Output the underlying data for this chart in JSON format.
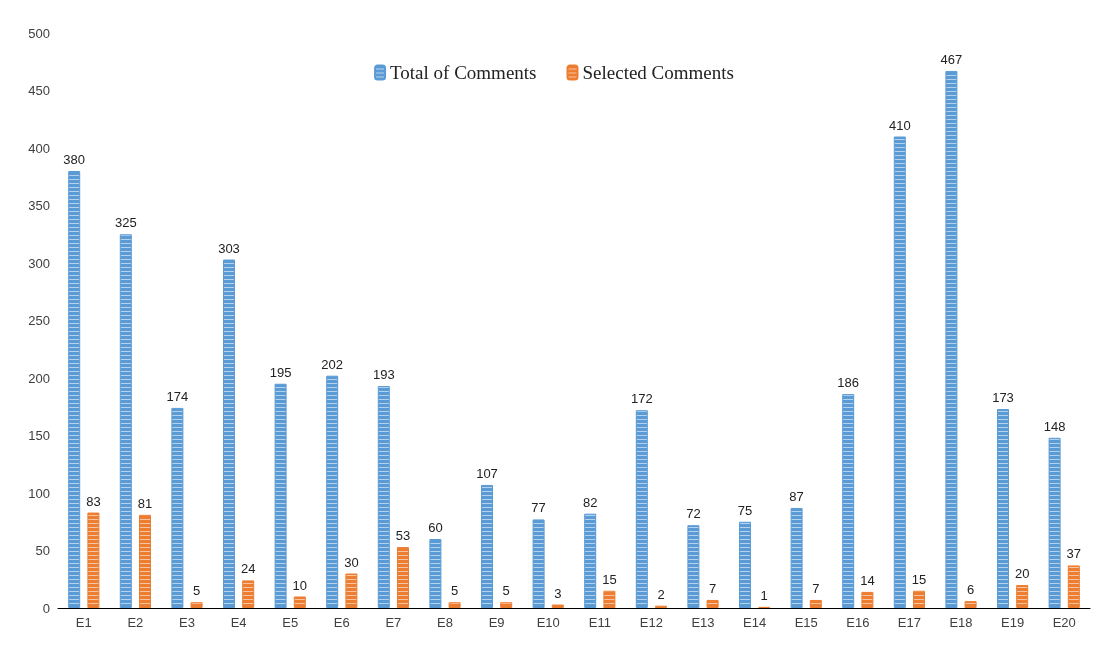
{
  "chart_data": {
    "type": "bar",
    "categories": [
      "E1",
      "E2",
      "E3",
      "E4",
      "E5",
      "E6",
      "E7",
      "E8",
      "E9",
      "E10",
      "E11",
      "E12",
      "E13",
      "E14",
      "E15",
      "E16",
      "E17",
      "E18",
      "E19",
      "E20"
    ],
    "series": [
      {
        "name": "Total of Comments",
        "color": "#5b9bd5",
        "values": [
          380,
          325,
          174,
          303,
          195,
          202,
          193,
          60,
          107,
          77,
          82,
          172,
          72,
          75,
          87,
          186,
          410,
          467,
          173,
          148
        ]
      },
      {
        "name": "Selected Comments",
        "color": "#ed7d31",
        "values": [
          83,
          81,
          5,
          24,
          10,
          30,
          53,
          5,
          5,
          3,
          15,
          2,
          7,
          1,
          7,
          14,
          15,
          6,
          20,
          37
        ]
      }
    ],
    "ylim": [
      0,
      500
    ],
    "yticks": [
      0,
      50,
      100,
      150,
      200,
      250,
      300,
      350,
      400,
      450,
      500
    ],
    "grid": false,
    "legend": "top",
    "data_labels": true
  }
}
